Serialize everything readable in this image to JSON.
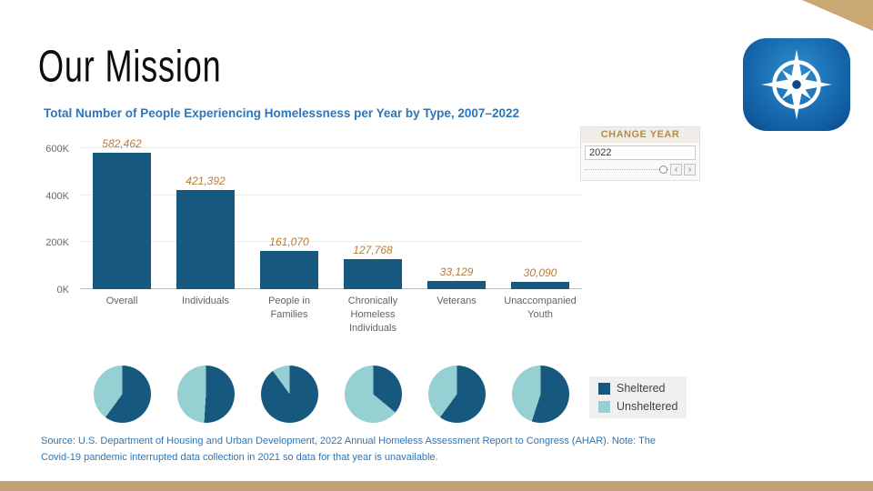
{
  "slide": {
    "title": "Our Mission"
  },
  "change_year": {
    "label": "CHANGE YEAR",
    "value": "2022",
    "prev": "‹",
    "next": "›"
  },
  "legend": {
    "items": [
      {
        "label": "Sheltered",
        "color": "#17597e"
      },
      {
        "label": "Unsheltered",
        "color": "#96d0d2"
      }
    ]
  },
  "source_note": "Source: U.S. Department of Housing and Urban Development, 2022 Annual Homeless Assessment Report to Congress (AHAR). Note: The Covid-19 pandemic interrupted data collection in 2021 so data for that year is unavailable.",
  "colors": {
    "bar": "#17597e",
    "sheltered": "#17597e",
    "unsheltered": "#96d0d2",
    "value_label": "#b97a35",
    "title_blue": "#2e75b6",
    "accent_gold": "#b08c4f",
    "footer_tan": "#c3a276"
  },
  "chart_data": [
    {
      "type": "bar",
      "title": "Total Number of People Experiencing Homelessness per Year by Type, 2007–2022",
      "categories": [
        "Overall",
        "Individuals",
        "People in Families",
        "Chronically Homeless Individuals",
        "Veterans",
        "Unaccompanied Youth"
      ],
      "values": [
        582462,
        421392,
        161070,
        127768,
        33129,
        30090
      ],
      "value_labels": [
        "582,462",
        "421,392",
        "161,070",
        "127,768",
        "33,129",
        "30,090"
      ],
      "ylim": [
        0,
        600000
      ],
      "yticks": [
        "0K",
        "200K",
        "400K",
        "600K"
      ],
      "ytick_values": [
        0,
        200000,
        400000,
        600000
      ],
      "grid": true,
      "legend_position": "none"
    },
    {
      "type": "pie",
      "categories": [
        "Overall",
        "Individuals",
        "People in Families",
        "Chronically Homeless Individuals",
        "Veterans",
        "Unaccompanied Youth"
      ],
      "series": [
        {
          "name": "Sheltered",
          "values_pct": [
            60,
            51,
            90,
            36,
            60,
            55
          ]
        },
        {
          "name": "Unsheltered",
          "values_pct": [
            40,
            49,
            10,
            64,
            40,
            45
          ]
        }
      ],
      "legend_position": "right"
    }
  ]
}
